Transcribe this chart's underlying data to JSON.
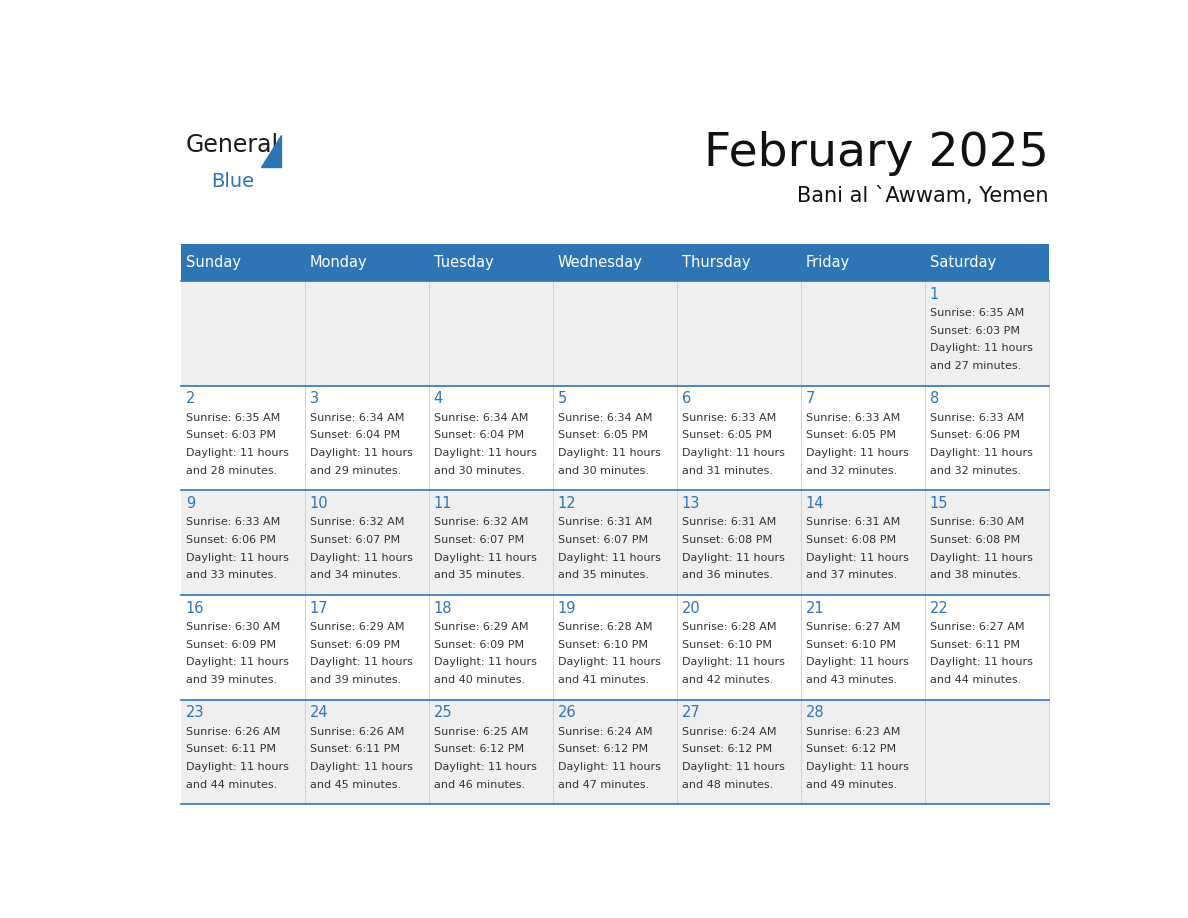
{
  "title": "February 2025",
  "subtitle": "Bani al `Awwam, Yemen",
  "days_of_week": [
    "Sunday",
    "Monday",
    "Tuesday",
    "Wednesday",
    "Thursday",
    "Friday",
    "Saturday"
  ],
  "header_bg": "#2e75b6",
  "header_text_color": "#ffffff",
  "cell_bg_odd": "#efefef",
  "cell_bg_even": "#ffffff",
  "day_num_color": "#2e75b6",
  "text_color": "#333333",
  "line_color": "#2e75b6",
  "calendar_data": [
    [
      {
        "day": null,
        "sunrise": null,
        "sunset": null,
        "daylight": null
      },
      {
        "day": null,
        "sunrise": null,
        "sunset": null,
        "daylight": null
      },
      {
        "day": null,
        "sunrise": null,
        "sunset": null,
        "daylight": null
      },
      {
        "day": null,
        "sunrise": null,
        "sunset": null,
        "daylight": null
      },
      {
        "day": null,
        "sunrise": null,
        "sunset": null,
        "daylight": null
      },
      {
        "day": null,
        "sunrise": null,
        "sunset": null,
        "daylight": null
      },
      {
        "day": 1,
        "sunrise": "6:35 AM",
        "sunset": "6:03 PM",
        "daylight": "11 hours and 27 minutes."
      }
    ],
    [
      {
        "day": 2,
        "sunrise": "6:35 AM",
        "sunset": "6:03 PM",
        "daylight": "11 hours and 28 minutes."
      },
      {
        "day": 3,
        "sunrise": "6:34 AM",
        "sunset": "6:04 PM",
        "daylight": "11 hours and 29 minutes."
      },
      {
        "day": 4,
        "sunrise": "6:34 AM",
        "sunset": "6:04 PM",
        "daylight": "11 hours and 30 minutes."
      },
      {
        "day": 5,
        "sunrise": "6:34 AM",
        "sunset": "6:05 PM",
        "daylight": "11 hours and 30 minutes."
      },
      {
        "day": 6,
        "sunrise": "6:33 AM",
        "sunset": "6:05 PM",
        "daylight": "11 hours and 31 minutes."
      },
      {
        "day": 7,
        "sunrise": "6:33 AM",
        "sunset": "6:05 PM",
        "daylight": "11 hours and 32 minutes."
      },
      {
        "day": 8,
        "sunrise": "6:33 AM",
        "sunset": "6:06 PM",
        "daylight": "11 hours and 32 minutes."
      }
    ],
    [
      {
        "day": 9,
        "sunrise": "6:33 AM",
        "sunset": "6:06 PM",
        "daylight": "11 hours and 33 minutes."
      },
      {
        "day": 10,
        "sunrise": "6:32 AM",
        "sunset": "6:07 PM",
        "daylight": "11 hours and 34 minutes."
      },
      {
        "day": 11,
        "sunrise": "6:32 AM",
        "sunset": "6:07 PM",
        "daylight": "11 hours and 35 minutes."
      },
      {
        "day": 12,
        "sunrise": "6:31 AM",
        "sunset": "6:07 PM",
        "daylight": "11 hours and 35 minutes."
      },
      {
        "day": 13,
        "sunrise": "6:31 AM",
        "sunset": "6:08 PM",
        "daylight": "11 hours and 36 minutes."
      },
      {
        "day": 14,
        "sunrise": "6:31 AM",
        "sunset": "6:08 PM",
        "daylight": "11 hours and 37 minutes."
      },
      {
        "day": 15,
        "sunrise": "6:30 AM",
        "sunset": "6:08 PM",
        "daylight": "11 hours and 38 minutes."
      }
    ],
    [
      {
        "day": 16,
        "sunrise": "6:30 AM",
        "sunset": "6:09 PM",
        "daylight": "11 hours and 39 minutes."
      },
      {
        "day": 17,
        "sunrise": "6:29 AM",
        "sunset": "6:09 PM",
        "daylight": "11 hours and 39 minutes."
      },
      {
        "day": 18,
        "sunrise": "6:29 AM",
        "sunset": "6:09 PM",
        "daylight": "11 hours and 40 minutes."
      },
      {
        "day": 19,
        "sunrise": "6:28 AM",
        "sunset": "6:10 PM",
        "daylight": "11 hours and 41 minutes."
      },
      {
        "day": 20,
        "sunrise": "6:28 AM",
        "sunset": "6:10 PM",
        "daylight": "11 hours and 42 minutes."
      },
      {
        "day": 21,
        "sunrise": "6:27 AM",
        "sunset": "6:10 PM",
        "daylight": "11 hours and 43 minutes."
      },
      {
        "day": 22,
        "sunrise": "6:27 AM",
        "sunset": "6:11 PM",
        "daylight": "11 hours and 44 minutes."
      }
    ],
    [
      {
        "day": 23,
        "sunrise": "6:26 AM",
        "sunset": "6:11 PM",
        "daylight": "11 hours and 44 minutes."
      },
      {
        "day": 24,
        "sunrise": "6:26 AM",
        "sunset": "6:11 PM",
        "daylight": "11 hours and 45 minutes."
      },
      {
        "day": 25,
        "sunrise": "6:25 AM",
        "sunset": "6:12 PM",
        "daylight": "11 hours and 46 minutes."
      },
      {
        "day": 26,
        "sunrise": "6:24 AM",
        "sunset": "6:12 PM",
        "daylight": "11 hours and 47 minutes."
      },
      {
        "day": 27,
        "sunrise": "6:24 AM",
        "sunset": "6:12 PM",
        "daylight": "11 hours and 48 minutes."
      },
      {
        "day": 28,
        "sunrise": "6:23 AM",
        "sunset": "6:12 PM",
        "daylight": "11 hours and 49 minutes."
      },
      {
        "day": null,
        "sunrise": null,
        "sunset": null,
        "daylight": null
      }
    ]
  ]
}
